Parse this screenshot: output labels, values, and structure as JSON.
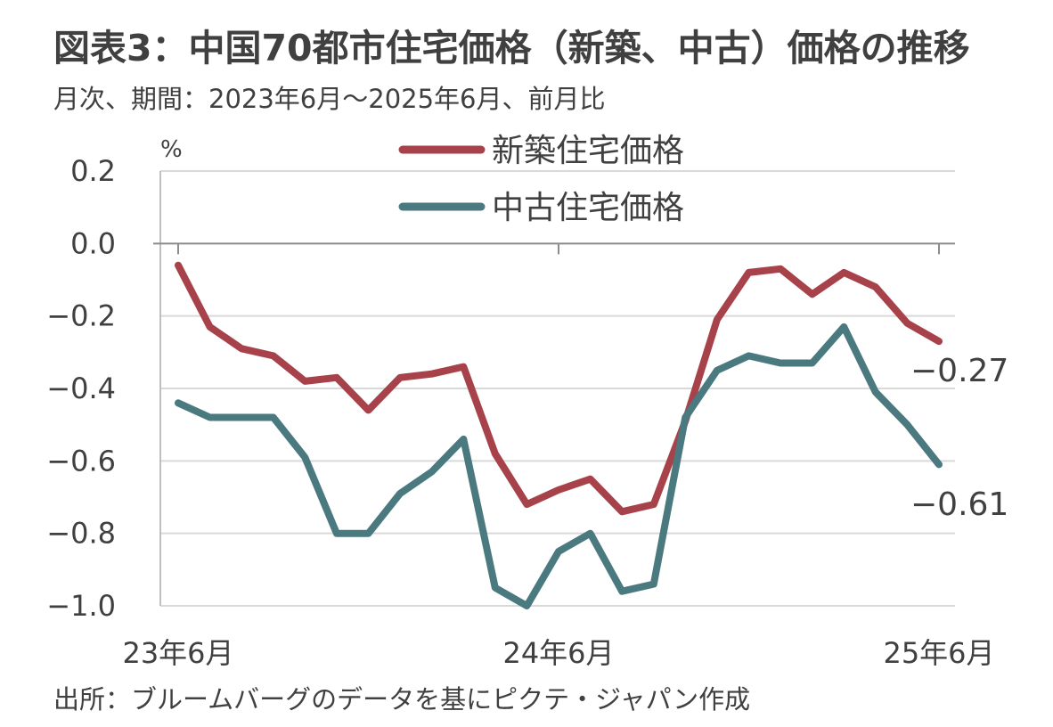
{
  "title": "図表3：中国70都市住宅価格（新築、中古）価格の推移",
  "subtitle": "月次、期間：2023年6月～2025年6月、前月比",
  "source": "出所：ブルームバーグのデータを基にピクテ・ジャパン作成",
  "chart_data": {
    "type": "line",
    "ylabel": "%",
    "ylim": [
      -1.0,
      0.2
    ],
    "yticks": [
      "0.2",
      "0.0",
      "−0.2",
      "−0.4",
      "−0.6",
      "−0.8",
      "−1.0"
    ],
    "ytick_values": [
      0.2,
      0.0,
      -0.2,
      -0.4,
      -0.6,
      -0.8,
      -1.0
    ],
    "x": [
      "23年6月",
      "23年7月",
      "23年8月",
      "23年9月",
      "23年10月",
      "23年11月",
      "23年12月",
      "24年1月",
      "24年2月",
      "24年3月",
      "24年4月",
      "24年5月",
      "24年6月",
      "24年7月",
      "24年8月",
      "24年9月",
      "24年10月",
      "24年11月",
      "24年12月",
      "25年1月",
      "25年2月",
      "25年3月",
      "25年4月",
      "25年5月",
      "25年6月"
    ],
    "xtick_labels": [
      "23年6月",
      "24年6月",
      "25年6月"
    ],
    "xtick_indices": [
      0,
      12,
      24
    ],
    "grid": true,
    "legend": "top",
    "series": [
      {
        "name": "新築住宅価格",
        "color": "#a8424a",
        "values": [
          -0.06,
          -0.23,
          -0.29,
          -0.31,
          -0.38,
          -0.37,
          -0.46,
          -0.37,
          -0.36,
          -0.34,
          -0.58,
          -0.72,
          -0.68,
          -0.65,
          -0.74,
          -0.72,
          -0.49,
          -0.21,
          -0.08,
          -0.07,
          -0.14,
          -0.08,
          -0.12,
          -0.22,
          -0.27
        ],
        "end_label": "−0.27"
      },
      {
        "name": "中古住宅価格",
        "color": "#4a7a80",
        "values": [
          -0.44,
          -0.48,
          -0.48,
          -0.48,
          -0.59,
          -0.8,
          -0.8,
          -0.69,
          -0.63,
          -0.54,
          -0.95,
          -1.0,
          -0.85,
          -0.8,
          -0.96,
          -0.94,
          -0.48,
          -0.35,
          -0.31,
          -0.33,
          -0.33,
          -0.23,
          -0.41,
          -0.5,
          -0.61
        ],
        "end_label": "−0.61"
      }
    ]
  }
}
